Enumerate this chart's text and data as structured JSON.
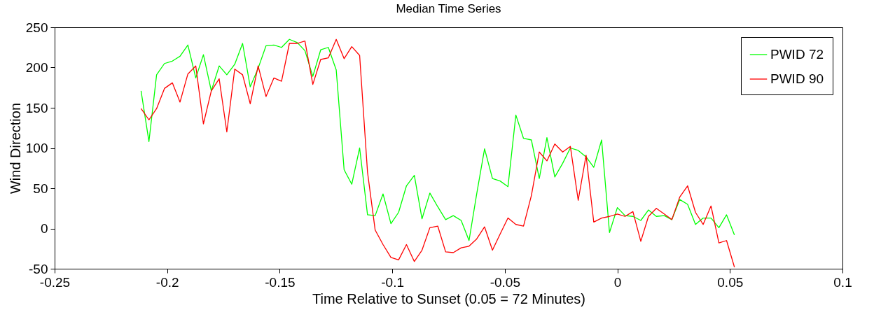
{
  "chart_data": {
    "type": "line",
    "title": "Median Time Series",
    "xlabel": "Time Relative to Sunset (0.05 = 72 Minutes)",
    "ylabel": "Wind Direction",
    "x": [
      -0.2116,
      -0.2081,
      -0.2047,
      -0.2012,
      -0.1977,
      -0.1943,
      -0.1908,
      -0.1873,
      -0.1839,
      -0.1804,
      -0.1769,
      -0.1735,
      -0.17,
      -0.1665,
      -0.1631,
      -0.1596,
      -0.1561,
      -0.1526,
      -0.1492,
      -0.1457,
      -0.1422,
      -0.1388,
      -0.1353,
      -0.1318,
      -0.1284,
      -0.1249,
      -0.1214,
      -0.118,
      -0.1145,
      -0.111,
      -0.1076,
      -0.1041,
      -0.1006,
      -0.0972,
      -0.0937,
      -0.0902,
      -0.0868,
      -0.0833,
      -0.0798,
      -0.0763,
      -0.0729,
      -0.0694,
      -0.0659,
      -0.0625,
      -0.059,
      -0.0555,
      -0.0521,
      -0.0486,
      -0.0451,
      -0.0417,
      -0.0382,
      -0.0347,
      -0.0313,
      -0.0278,
      -0.0243,
      -0.0209,
      -0.0174,
      -0.0139,
      -0.0105,
      -0.007,
      -0.0035,
      0,
      0.0034,
      0.0069,
      0.0104,
      0.0138,
      0.0173,
      0.0208,
      0.0242,
      0.0277,
      0.0312,
      0.0347,
      0.0381,
      0.0416,
      0.0451,
      0.0485,
      0.052
    ],
    "series": [
      {
        "name": "PWID 72",
        "color": "#00ff00",
        "values": [
          171,
          108,
          191,
          205,
          208,
          214,
          228,
          187,
          216,
          171,
          202,
          191,
          204,
          230,
          176,
          199,
          227,
          228,
          225,
          235,
          231,
          221,
          189,
          222,
          225,
          197,
          73,
          55,
          100,
          17,
          16,
          43,
          6,
          20,
          53,
          66,
          12,
          44,
          27,
          11,
          16,
          10,
          -15,
          43,
          99,
          62,
          59,
          52,
          141,
          112,
          110,
          62,
          113,
          64,
          81,
          100,
          97,
          89,
          76,
          110,
          -5,
          26,
          16,
          15,
          10,
          23,
          15,
          16,
          11,
          36,
          30,
          5,
          13,
          13,
          1,
          17,
          -8
        ]
      },
      {
        "name": "PWID 90",
        "color": "#ff0000",
        "values": [
          149,
          135,
          149,
          174,
          181,
          157,
          192,
          202,
          130,
          171,
          186,
          120,
          198,
          191,
          155,
          202,
          164,
          187,
          183,
          230,
          230,
          233,
          179,
          210,
          212,
          235,
          211,
          226,
          215,
          70,
          -2,
          -20,
          -36,
          -39,
          -20,
          -41,
          -27,
          1,
          3,
          -29,
          -30,
          -24,
          -22,
          -13,
          2,
          -27,
          -7,
          13,
          5,
          3,
          41,
          95,
          84,
          105,
          95,
          102,
          35,
          91,
          8,
          13,
          15,
          18,
          15,
          21,
          -16,
          15,
          25,
          18,
          11,
          39,
          53,
          20,
          5,
          28,
          -18,
          -15,
          -48
        ]
      }
    ],
    "xlim": [
      -0.25,
      0.1
    ],
    "xticks": [
      -0.25,
      -0.2,
      -0.15,
      -0.1,
      -0.05,
      0,
      0.05,
      0.1
    ],
    "ylim": [
      -50,
      250
    ],
    "yticks": [
      -50,
      0,
      50,
      100,
      150,
      200,
      250
    ],
    "grid": false,
    "legend": "top right",
    "marker": "none",
    "line_style": "solid"
  }
}
